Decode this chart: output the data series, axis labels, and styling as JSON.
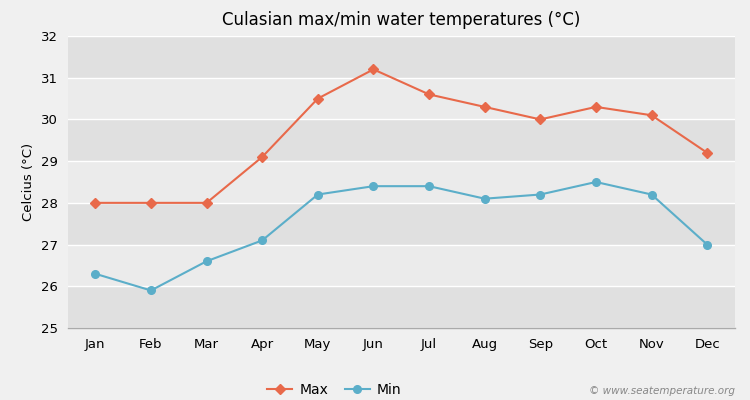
{
  "title": "Culasian max/min water temperatures (°C)",
  "ylabel": "Celcius (°C)",
  "months": [
    "Jan",
    "Feb",
    "Mar",
    "Apr",
    "May",
    "Jun",
    "Jul",
    "Aug",
    "Sep",
    "Oct",
    "Nov",
    "Dec"
  ],
  "max_values": [
    28.0,
    28.0,
    28.0,
    29.1,
    30.5,
    31.2,
    30.6,
    30.3,
    30.0,
    30.3,
    30.1,
    29.2
  ],
  "min_values": [
    26.3,
    25.9,
    26.6,
    27.1,
    28.2,
    28.4,
    28.4,
    28.1,
    28.2,
    28.5,
    28.2,
    27.0
  ],
  "max_color": "#e8694a",
  "min_color": "#5baec9",
  "bg_color": "#f0f0f0",
  "band_light": "#ebebeb",
  "band_dark": "#e0e0e0",
  "ylim": [
    25,
    32
  ],
  "yticks": [
    25,
    26,
    27,
    28,
    29,
    30,
    31,
    32
  ],
  "watermark": "© www.seatemperature.org",
  "legend_max": "Max",
  "legend_min": "Min"
}
